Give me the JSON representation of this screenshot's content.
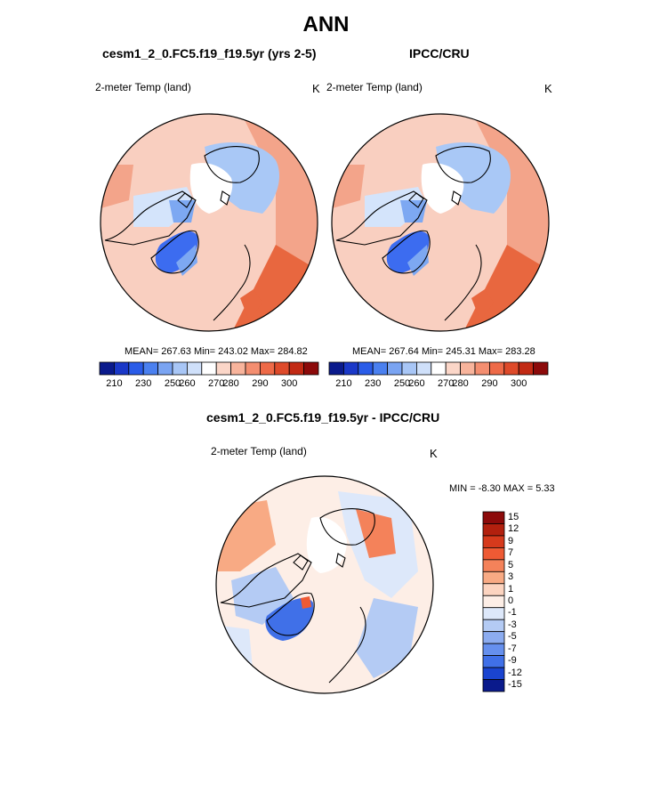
{
  "title": "ANN",
  "panels": [
    {
      "subtitle": "cesm1_2_0.FC5.f19_f19.5yr (yrs 2-5)",
      "variable": "2-meter Temp (land)",
      "unit": "K",
      "stats": "MEAN= 267.63  Min= 243.02  Max= 284.82"
    },
    {
      "subtitle": "IPCC/CRU",
      "variable": "2-meter Temp (land)",
      "unit": "K",
      "stats": "MEAN= 267.64  Min= 245.31  Max= 283.28"
    }
  ],
  "diff_panel": {
    "subtitle": "cesm1_2_0.FC5.f19_f19.5yr - IPCC/CRU",
    "variable": "2-meter Temp (land)",
    "unit": "K",
    "stats": "MIN =  -8.30 MAX =   5.33"
  },
  "colorbar_abs": {
    "colors": [
      "#0a1a8c",
      "#1a38c8",
      "#2a5ce8",
      "#4a80f0",
      "#7aa4f2",
      "#a8c6f6",
      "#cfe0fa",
      "#ffffff",
      "#fbd6c8",
      "#f8b49c",
      "#f48e70",
      "#ee6a48",
      "#de4a2a",
      "#c22a14",
      "#8c0a0a"
    ],
    "labels": [
      "210",
      "230",
      "250",
      "260",
      "270",
      "280",
      "290",
      "300"
    ]
  },
  "colorbar_diff": {
    "colors": [
      "#8c0a0a",
      "#b2200e",
      "#d63a1c",
      "#ee5a34",
      "#f4825a",
      "#f8aa84",
      "#fcd4c0",
      "#fdeee6",
      "#dde8fa",
      "#b4cbf4",
      "#8cacf0",
      "#6690ee",
      "#4070e8",
      "#1a44d0",
      "#0a1a8c"
    ],
    "labels": [
      "15",
      "12",
      "9",
      "7",
      "5",
      "3",
      "1",
      "0",
      "-1",
      "-3",
      "-5",
      "-7",
      "-9",
      "-12",
      "-15"
    ]
  },
  "map_colors": {
    "ocean": "#ffffff",
    "very_cold": "#3c6cf0",
    "cold": "#7da8f2",
    "cool": "#a9c8f6",
    "pale": "#d4e4fb",
    "warm_light": "#f9cfc0",
    "warm": "#f3a48a",
    "hot": "#e8673f"
  }
}
